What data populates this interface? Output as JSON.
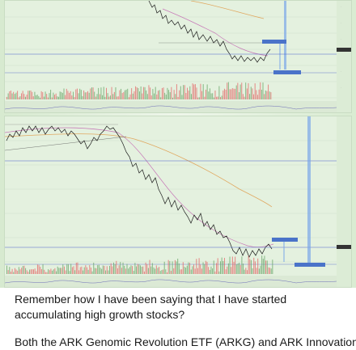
{
  "article": {
    "paragraph_1": "Remember how I have been saying that I have started accumulating high growth stocks?",
    "paragraph_2": "Both the ARK Genomic Revolution ETF (ARKG) and ARK Innovation"
  },
  "colors": {
    "background": "#e4f1df",
    "price_line": "#1a1a1a",
    "ma_short": "#c77ab8",
    "ma_long": "#e0a860",
    "volume_bar": "#e46a6a",
    "volume_bar_up": "#6aa86a",
    "highlight_band": "#7aa6e8",
    "horizontal_line": "#4a63c9"
  },
  "charts": [
    {
      "name": "top-stock-chart"
    },
    {
      "name": "bottom-stock-chart"
    }
  ]
}
